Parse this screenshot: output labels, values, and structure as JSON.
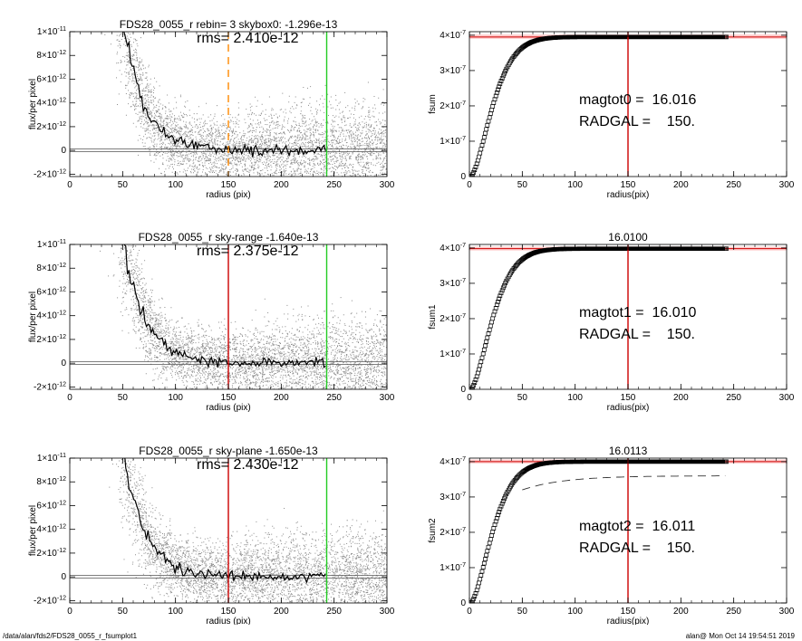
{
  "footer": {
    "left": "/data/alan/fds2/FDS28_0055_r_fsumplot1",
    "right": "alan@  Mon Oct 14 19:54:51 2019"
  },
  "colors": {
    "scatter": "#8c8c8c",
    "profile": "#000000",
    "red_line": "#cc0000",
    "green_line": "#22cc22",
    "orange_dash": "#ff8800",
    "sat_band": "#ff9999"
  },
  "chart_data": [
    {
      "type": "scatter",
      "title": "FDS28_0055_r rebin= 3    skybox0: -1.296e-13",
      "rms_text": "rms= 2.410e-12",
      "xlabel": "radius (pix)",
      "ylabel": "flux/per pixel",
      "xlim": [
        0,
        300
      ],
      "ylim": [
        -2.2e-12,
        1e-11
      ],
      "xticks": [
        "0",
        "50",
        "100",
        "150",
        "200",
        "250",
        "300"
      ],
      "yticks": [
        {
          "v": -2e-12,
          "m": "-2",
          "e": "-12"
        },
        {
          "v": 0,
          "m": "0",
          "e": ""
        },
        {
          "v": 2e-12,
          "m": "2",
          "e": "-12"
        },
        {
          "v": 4e-12,
          "m": "4",
          "e": "-12"
        },
        {
          "v": 6e-12,
          "m": "6",
          "e": "-12"
        },
        {
          "v": 8e-12,
          "m": "8",
          "e": "-12"
        },
        {
          "v": 1e-11,
          "m": "1",
          "e": "-11"
        }
      ],
      "vlines": [
        {
          "x": 150,
          "style": "orange_dash"
        },
        {
          "x": 243,
          "style": "green_line"
        }
      ],
      "profile": {
        "amplitude": 3e-11,
        "scale": 20,
        "offset": 30,
        "noise": 2.4e-12,
        "end": 243
      }
    },
    {
      "type": "line",
      "title": "",
      "xlabel": "radius(pix)",
      "ylabel": "fsum",
      "xlim": [
        0,
        300
      ],
      "ylim": [
        0,
        4.1e-07
      ],
      "xticks": [
        "0",
        "50",
        "100",
        "150",
        "200",
        "250",
        "300"
      ],
      "yticks": [
        {
          "v": 0,
          "m": "0",
          "e": ""
        },
        {
          "v": 1e-07,
          "m": "1",
          "e": "-7"
        },
        {
          "v": 2e-07,
          "m": "2",
          "e": "-7"
        },
        {
          "v": 3e-07,
          "m": "3",
          "e": "-7"
        },
        {
          "v": 4e-07,
          "m": "4",
          "e": "-7"
        }
      ],
      "vlines": [
        {
          "x": 150,
          "style": "red_line"
        }
      ],
      "plateau": 3.95e-07,
      "band": [
        3.9e-07,
        4.02e-07
      ],
      "curve": {
        "scale": 22,
        "end": 243
      },
      "dashed": null,
      "annotations": [
        "magtot0 =  16.016",
        "RADGAL =    150."
      ]
    },
    {
      "type": "scatter",
      "title": "FDS28_0055_r sky-range -1.640e-13",
      "rms_text": "rms= 2.375e-12",
      "xlabel": "radius (pix)",
      "ylabel": "flux/per pixel",
      "xlim": [
        0,
        300
      ],
      "ylim": [
        -2.2e-12,
        1e-11
      ],
      "xticks": [
        "0",
        "50",
        "100",
        "150",
        "200",
        "250",
        "300"
      ],
      "yticks": [
        {
          "v": -2e-12,
          "m": "-2",
          "e": "-12"
        },
        {
          "v": 0,
          "m": "0",
          "e": ""
        },
        {
          "v": 2e-12,
          "m": "2",
          "e": "-12"
        },
        {
          "v": 4e-12,
          "m": "4",
          "e": "-12"
        },
        {
          "v": 6e-12,
          "m": "6",
          "e": "-12"
        },
        {
          "v": 8e-12,
          "m": "8",
          "e": "-12"
        },
        {
          "v": 1e-11,
          "m": "1",
          "e": "-11"
        }
      ],
      "vlines": [
        {
          "x": 150,
          "style": "red_line"
        },
        {
          "x": 243,
          "style": "green_line"
        }
      ],
      "profile": {
        "amplitude": 3e-11,
        "scale": 20,
        "offset": 30,
        "noise": 2.4e-12,
        "end": 243
      }
    },
    {
      "type": "line",
      "title": "16.0100",
      "xlabel": "radius(pix)",
      "ylabel": "fsum1",
      "xlim": [
        0,
        300
      ],
      "ylim": [
        0,
        4.1e-07
      ],
      "xticks": [
        "0",
        "50",
        "100",
        "150",
        "200",
        "250",
        "300"
      ],
      "yticks": [
        {
          "v": 0,
          "m": "0",
          "e": ""
        },
        {
          "v": 1e-07,
          "m": "1",
          "e": "-7"
        },
        {
          "v": 2e-07,
          "m": "2",
          "e": "-7"
        },
        {
          "v": 3e-07,
          "m": "3",
          "e": "-7"
        },
        {
          "v": 4e-07,
          "m": "4",
          "e": "-7"
        }
      ],
      "vlines": [
        {
          "x": 150,
          "style": "red_line"
        }
      ],
      "plateau": 3.98e-07,
      "band": [
        3.93e-07,
        4.04e-07
      ],
      "curve": {
        "scale": 22,
        "end": 243
      },
      "dashed": null,
      "annotations": [
        "magtot1 =  16.010",
        "RADGAL =    150."
      ]
    },
    {
      "type": "scatter",
      "title": "FDS28_0055_r sky-plane -1.650e-13",
      "rms_text": "rms= 2.430e-12",
      "xlabel": "radius (pix)",
      "ylabel": "flux/per pixel",
      "xlim": [
        0,
        300
      ],
      "ylim": [
        -2.2e-12,
        1e-11
      ],
      "xticks": [
        "0",
        "50",
        "100",
        "150",
        "200",
        "250",
        "300"
      ],
      "yticks": [
        {
          "v": -2e-12,
          "m": "-2",
          "e": "-12"
        },
        {
          "v": 0,
          "m": "0",
          "e": ""
        },
        {
          "v": 2e-12,
          "m": "2",
          "e": "-12"
        },
        {
          "v": 4e-12,
          "m": "4",
          "e": "-12"
        },
        {
          "v": 6e-12,
          "m": "6",
          "e": "-12"
        },
        {
          "v": 8e-12,
          "m": "8",
          "e": "-12"
        },
        {
          "v": 1e-11,
          "m": "1",
          "e": "-11"
        }
      ],
      "vlines": [
        {
          "x": 150,
          "style": "red_line"
        },
        {
          "x": 243,
          "style": "green_line"
        }
      ],
      "profile": {
        "amplitude": 3e-11,
        "scale": 20,
        "offset": 30,
        "noise": 2.4e-12,
        "end": 243
      }
    },
    {
      "type": "line",
      "title": "16.0113",
      "xlabel": "radius(pix)",
      "ylabel": "fsum2",
      "xlim": [
        0,
        300
      ],
      "ylim": [
        0,
        4.1e-07
      ],
      "xticks": [
        "0",
        "50",
        "100",
        "150",
        "200",
        "250",
        "300"
      ],
      "yticks": [
        {
          "v": 0,
          "m": "0",
          "e": ""
        },
        {
          "v": 1e-07,
          "m": "1",
          "e": "-7"
        },
        {
          "v": 2e-07,
          "m": "2",
          "e": "-7"
        },
        {
          "v": 3e-07,
          "m": "3",
          "e": "-7"
        },
        {
          "v": 4e-07,
          "m": "4",
          "e": "-7"
        }
      ],
      "vlines": [
        {
          "x": 150,
          "style": "red_line"
        }
      ],
      "plateau": 4e-07,
      "band": [
        3.95e-07,
        4.06e-07
      ],
      "curve": {
        "scale": 22,
        "end": 243
      },
      "dashed": {
        "x0": 50,
        "x1": 243,
        "y0": 3.2e-07,
        "y1": 3.6e-07
      },
      "annotations": [
        "magtot2 =  16.011",
        "RADGAL =    150."
      ]
    }
  ]
}
